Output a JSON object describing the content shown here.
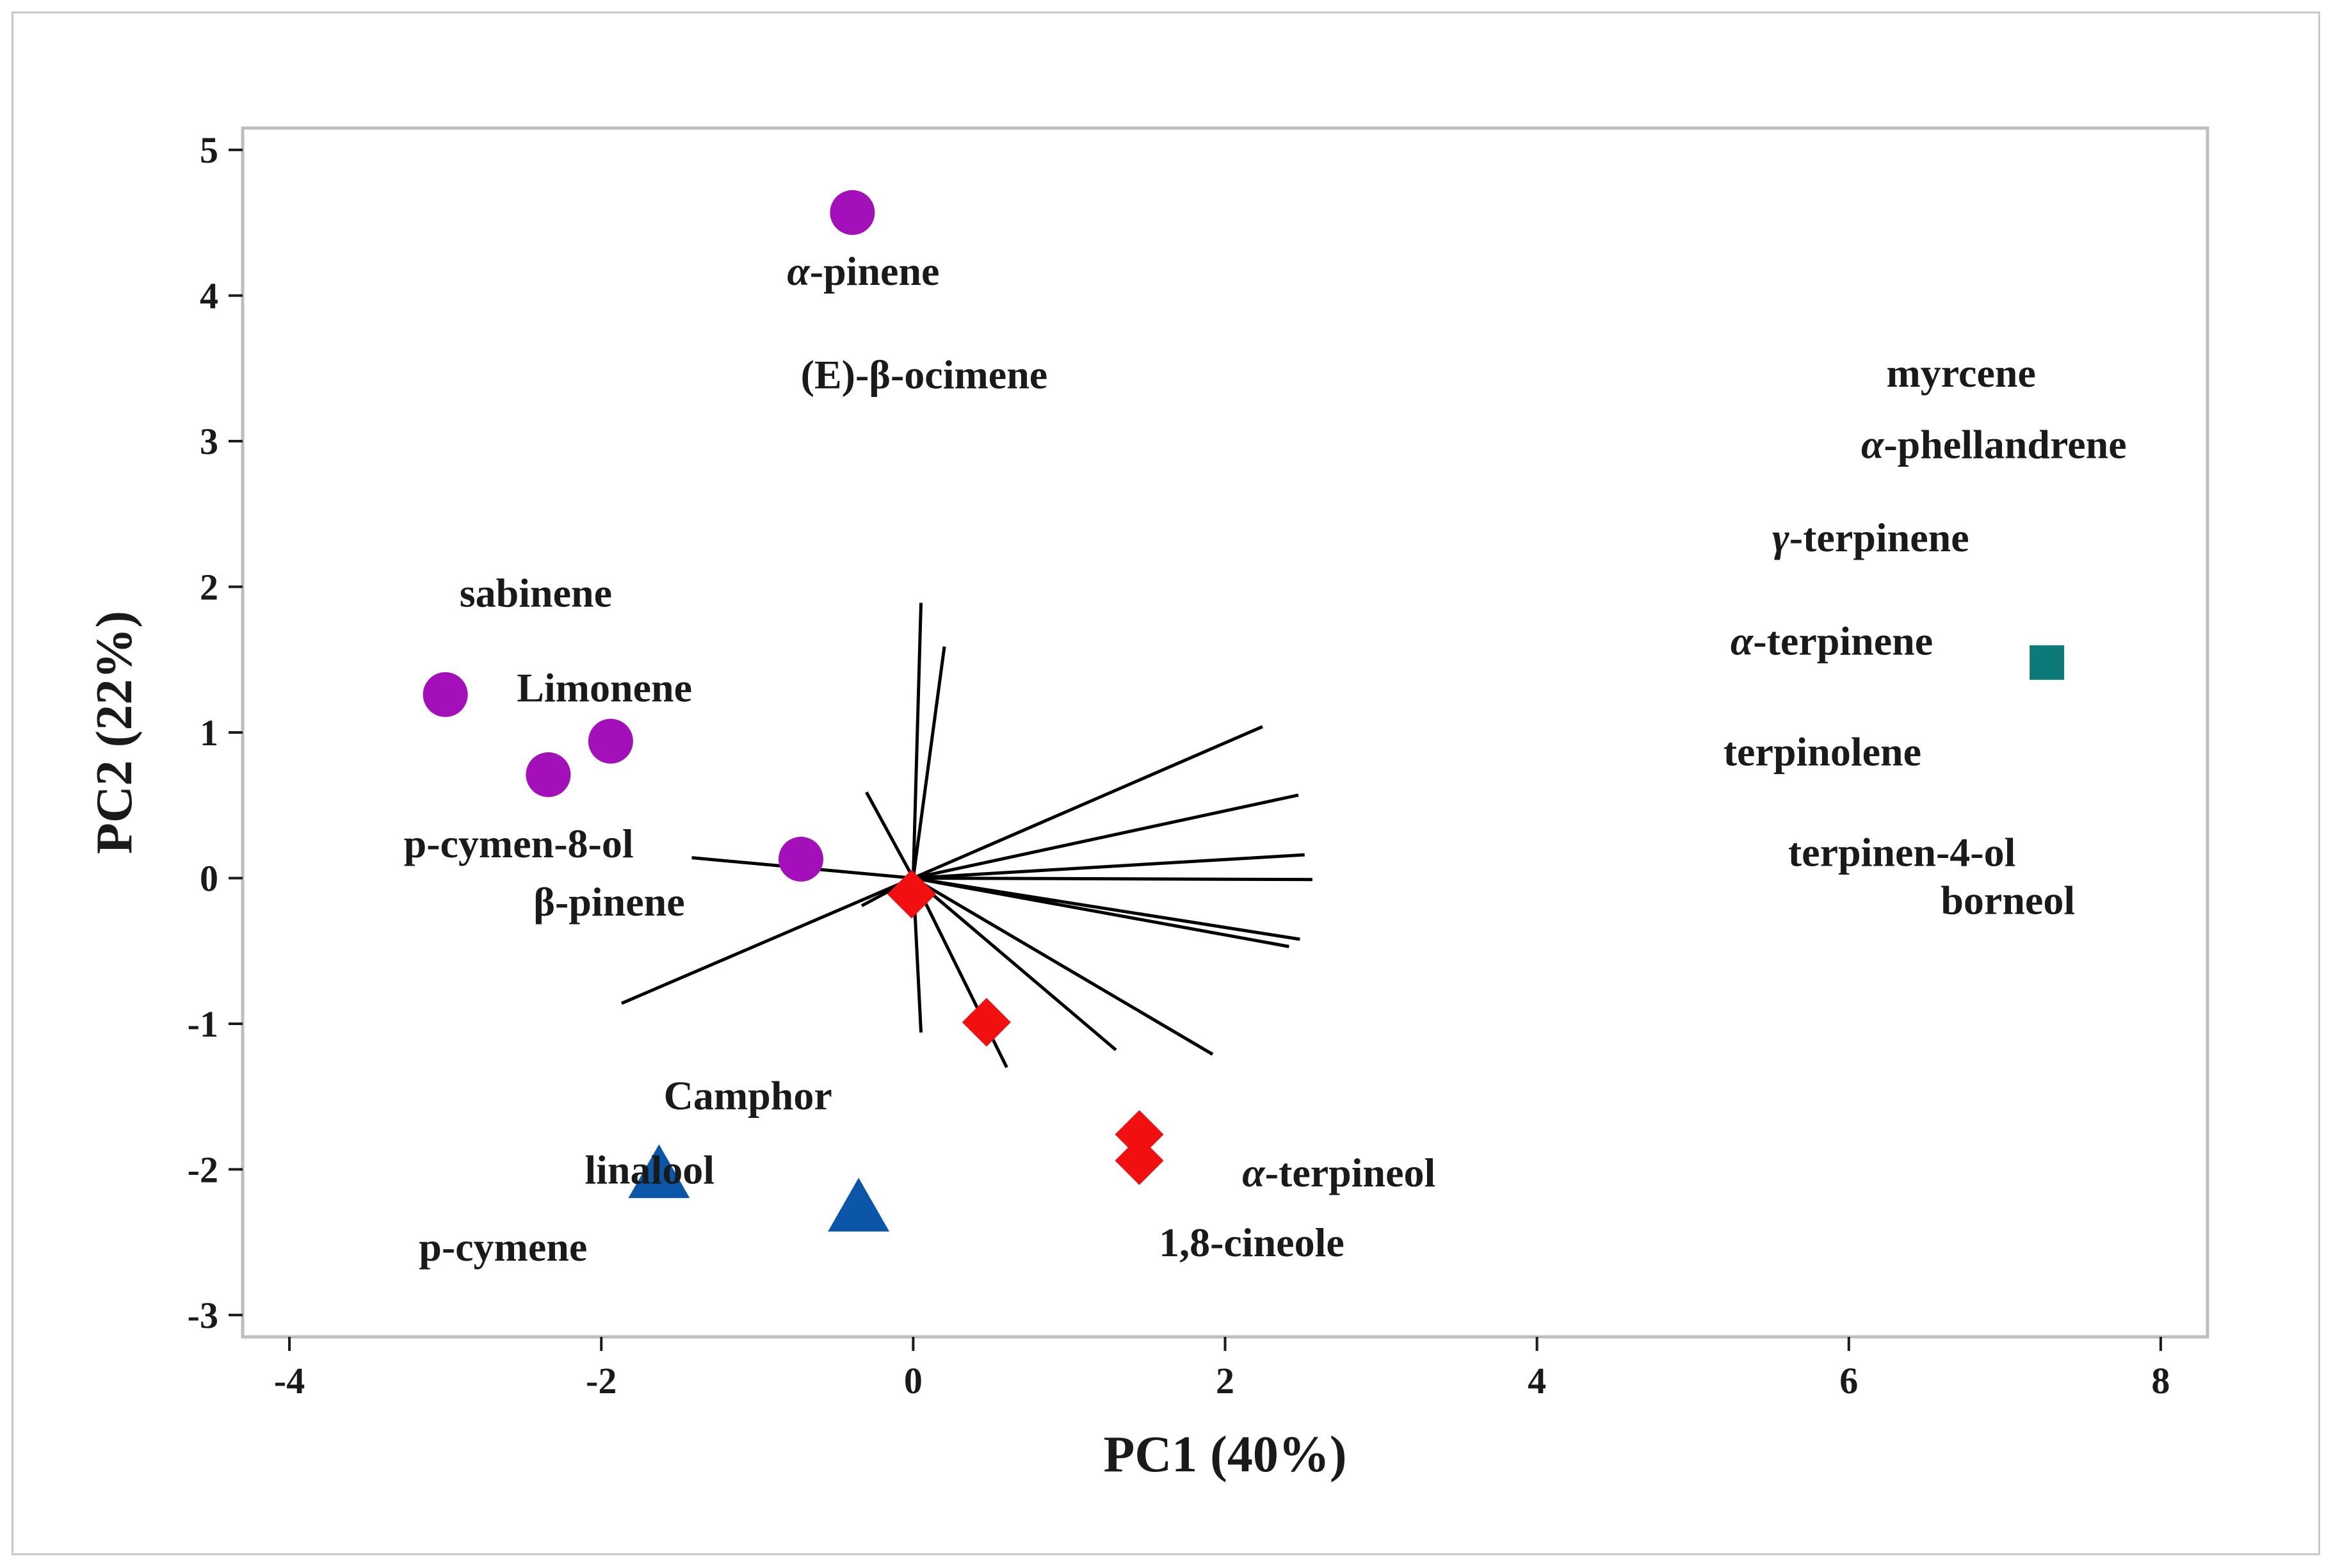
{
  "chart_data": {
    "type": "scatter",
    "xlabel": "PC1 (40%)",
    "ylabel": "PC2 (22%)",
    "xlim": [
      -4.3,
      8.3
    ],
    "ylim": [
      -3.15,
      5.15
    ],
    "x_ticks": [
      -4,
      -2,
      0,
      2,
      4,
      6,
      8
    ],
    "x_tick_labels": [
      "-4",
      "-2",
      "0",
      "2",
      "4",
      "6",
      "8"
    ],
    "y_ticks": [
      -3,
      -2,
      -1,
      0,
      1,
      2,
      3,
      4,
      5
    ],
    "y_tick_labels": [
      "-3",
      "-2",
      "-1",
      "0",
      "1",
      "2",
      "3",
      "4",
      "5"
    ],
    "grid": false,
    "legend": "none",
    "series": [
      {
        "marker": "circle",
        "color": "#a30fb8",
        "points": [
          {
            "x": -0.39,
            "y": 4.57
          },
          {
            "x": -3.0,
            "y": 1.26
          },
          {
            "x": -1.94,
            "y": 0.94
          },
          {
            "x": -2.34,
            "y": 0.71
          },
          {
            "x": -0.72,
            "y": 0.13
          }
        ]
      },
      {
        "marker": "diamond",
        "color": "#f20f0f",
        "points": [
          {
            "x": -0.01,
            "y": -0.11
          },
          {
            "x": 0.47,
            "y": -0.99
          },
          {
            "x": 1.45,
            "y": -1.76
          },
          {
            "x": 1.45,
            "y": -1.94
          }
        ]
      },
      {
        "marker": "triangle",
        "color": "#0b56a8",
        "points": [
          {
            "x": -1.63,
            "y": -2.03
          },
          {
            "x": -0.35,
            "y": -2.26
          }
        ]
      },
      {
        "marker": "square",
        "color": "#0d7a7a",
        "points": [
          {
            "x": 7.27,
            "y": 1.48
          }
        ]
      }
    ],
    "loadings": [
      {
        "x": 0.05,
        "y": 1.89
      },
      {
        "x": 0.2,
        "y": 1.59
      },
      {
        "x": 2.24,
        "y": 1.04
      },
      {
        "x": 2.47,
        "y": 0.57
      },
      {
        "x": 2.51,
        "y": 0.16
      },
      {
        "x": 2.56,
        "y": -0.01
      },
      {
        "x": 2.48,
        "y": -0.42
      },
      {
        "x": 2.41,
        "y": -0.47
      },
      {
        "x": 1.92,
        "y": -1.21
      },
      {
        "x": 1.3,
        "y": -1.18
      },
      {
        "x": 0.6,
        "y": -1.3
      },
      {
        "x": 0.05,
        "y": -1.06
      },
      {
        "x": -0.3,
        "y": 0.59
      },
      {
        "x": -1.42,
        "y": 0.14
      },
      {
        "x": -1.87,
        "y": -0.86
      },
      {
        "x": -0.33,
        "y": -0.19
      }
    ],
    "annotations": [
      {
        "text": "α-pinene",
        "x": -0.32,
        "y": 4.17
      },
      {
        "text": "(E)-β-ocimene",
        "x": 0.07,
        "y": 3.46
      },
      {
        "text": "sabinene",
        "x": -2.42,
        "y": 1.96
      },
      {
        "text": "Limonene",
        "x": -1.98,
        "y": 1.31
      },
      {
        "text": "p-cymen-8-ol",
        "x": -2.53,
        "y": 0.24
      },
      {
        "text": "β-pinene",
        "x": -1.95,
        "y": -0.16
      },
      {
        "text": "Camphor",
        "x": -1.06,
        "y": -1.49
      },
      {
        "text": "linalool",
        "x": -1.69,
        "y": -2.0
      },
      {
        "text": "p-cymene",
        "x": -2.63,
        "y": -2.53
      },
      {
        "text": "α-terpineol",
        "x": 2.73,
        "y": -2.02
      },
      {
        "text": "1,8-cineole",
        "x": 2.17,
        "y": -2.5
      },
      {
        "text": "myrcene",
        "x": 6.72,
        "y": 3.47
      },
      {
        "text": "α-phellandrene",
        "x": 6.93,
        "y": 2.98
      },
      {
        "text": "γ-terpinene",
        "x": 6.14,
        "y": 2.34
      },
      {
        "text": "α-terpinene",
        "x": 5.89,
        "y": 1.63
      },
      {
        "text": "terpinolene",
        "x": 5.83,
        "y": 0.87
      },
      {
        "text": "terpinen-4-ol",
        "x": 6.34,
        "y": 0.18
      },
      {
        "text": "borneol",
        "x": 7.02,
        "y": -0.15
      }
    ]
  }
}
